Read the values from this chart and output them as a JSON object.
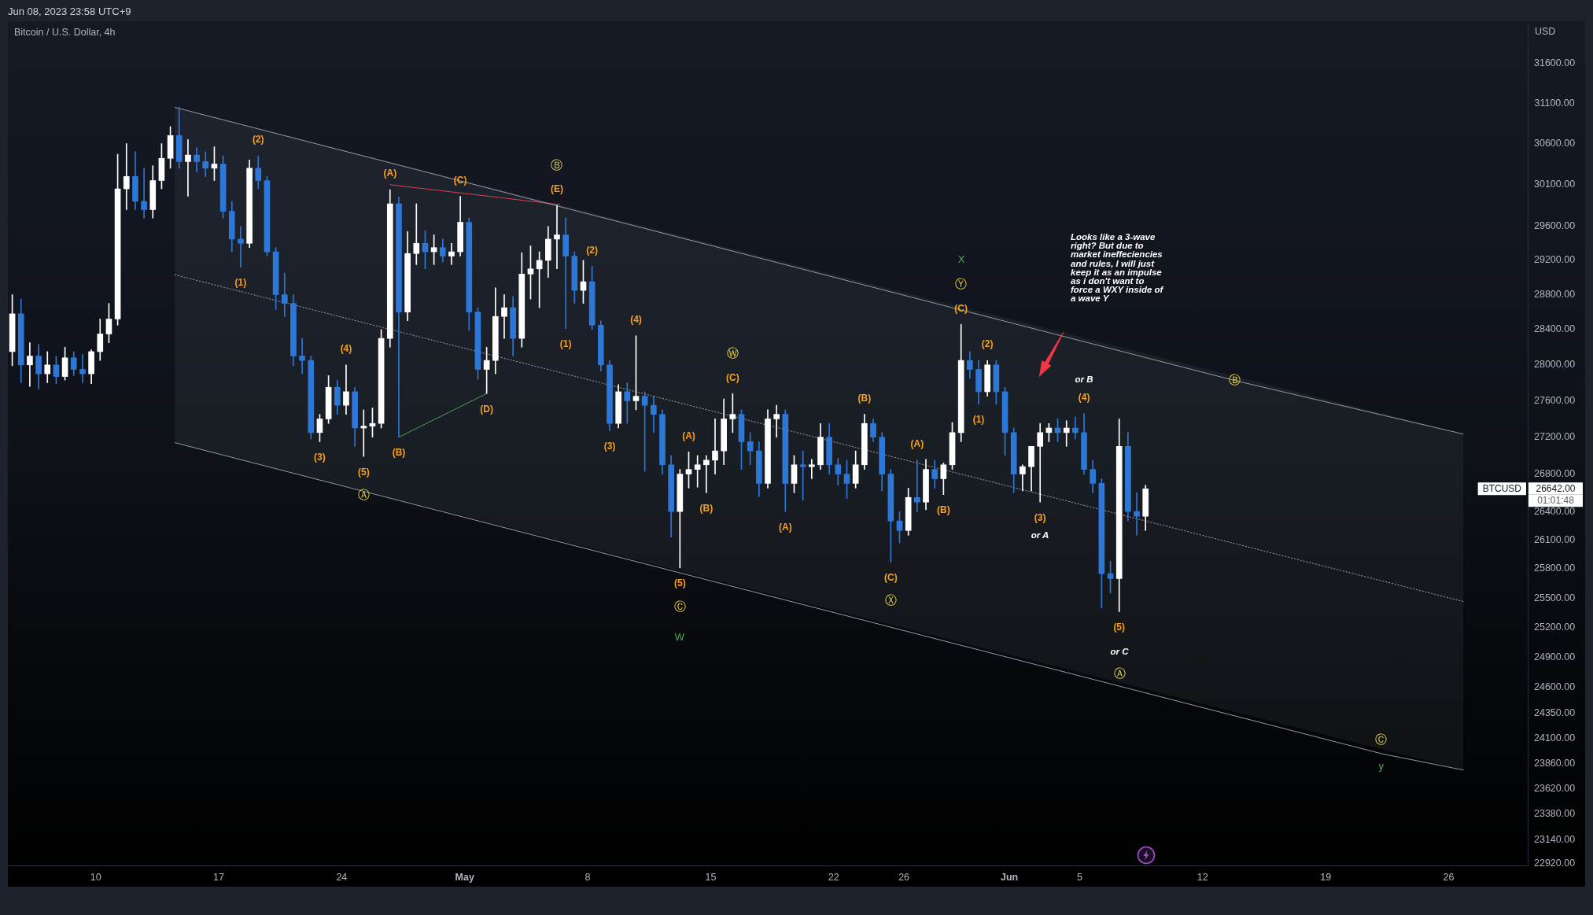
{
  "chart_data": {
    "type": "candlestick",
    "title": "Bitcoin / U.S. Dollar, 4h",
    "subtitle": "Jun 08, 2023 23:58 UTC+9",
    "ylabel": "USD",
    "x": [
      "2023-04-05T06:00",
      "2023-04-05T18:00",
      "2023-04-06T06:00",
      "2023-04-06T18:00",
      "2023-04-07T06:00",
      "2023-04-07T18:00",
      "2023-04-08T06:00",
      "2023-04-08T18:00",
      "2023-04-09T06:00",
      "2023-04-09T18:00",
      "2023-04-10T06:00",
      "2023-04-10T18:00",
      "2023-04-11T06:00",
      "2023-04-11T18:00",
      "2023-04-12T06:00",
      "2023-04-12T18:00",
      "2023-04-13T06:00",
      "2023-04-13T18:00",
      "2023-04-14T06:00",
      "2023-04-14T18:00",
      "2023-04-15T06:00",
      "2023-04-15T18:00",
      "2023-04-16T06:00",
      "2023-04-16T18:00",
      "2023-04-17T06:00",
      "2023-04-17T18:00",
      "2023-04-18T06:00",
      "2023-04-18T18:00",
      "2023-04-19T06:00",
      "2023-04-19T18:00",
      "2023-04-20T06:00",
      "2023-04-20T18:00",
      "2023-04-21T06:00",
      "2023-04-21T18:00",
      "2023-04-22T06:00",
      "2023-04-22T18:00",
      "2023-04-23T06:00",
      "2023-04-23T18:00",
      "2023-04-24T06:00",
      "2023-04-24T18:00",
      "2023-04-25T06:00",
      "2023-04-25T18:00",
      "2023-04-26T06:00",
      "2023-04-26T18:00",
      "2023-04-27T06:00",
      "2023-04-27T18:00",
      "2023-04-28T06:00",
      "2023-04-28T18:00",
      "2023-04-29T06:00",
      "2023-04-29T18:00",
      "2023-04-30T06:00",
      "2023-04-30T18:00",
      "2023-05-01T06:00",
      "2023-05-01T18:00",
      "2023-05-02T06:00",
      "2023-05-02T18:00",
      "2023-05-03T06:00",
      "2023-05-03T18:00",
      "2023-05-04T06:00",
      "2023-05-04T18:00",
      "2023-05-05T06:00",
      "2023-05-05T18:00",
      "2023-05-06T06:00",
      "2023-05-06T18:00",
      "2023-05-07T06:00",
      "2023-05-07T18:00",
      "2023-05-08T06:00",
      "2023-05-08T18:00",
      "2023-05-09T06:00",
      "2023-05-09T18:00",
      "2023-05-10T06:00",
      "2023-05-10T18:00",
      "2023-05-11T06:00",
      "2023-05-11T18:00",
      "2023-05-12T06:00",
      "2023-05-12T18:00",
      "2023-05-13T06:00",
      "2023-05-13T18:00",
      "2023-05-14T06:00",
      "2023-05-14T18:00",
      "2023-05-15T06:00",
      "2023-05-15T18:00",
      "2023-05-16T06:00",
      "2023-05-16T18:00",
      "2023-05-17T06:00",
      "2023-05-17T18:00",
      "2023-05-18T06:00",
      "2023-05-18T18:00",
      "2023-05-19T06:00",
      "2023-05-19T18:00",
      "2023-05-20T06:00",
      "2023-05-20T18:00",
      "2023-05-21T06:00",
      "2023-05-21T18:00",
      "2023-05-22T06:00",
      "2023-05-22T18:00",
      "2023-05-23T06:00",
      "2023-05-23T18:00",
      "2023-05-24T06:00",
      "2023-05-24T18:00",
      "2023-05-25T06:00",
      "2023-05-25T18:00",
      "2023-05-26T06:00",
      "2023-05-26T18:00",
      "2023-05-27T06:00",
      "2023-05-27T18:00",
      "2023-05-28T06:00",
      "2023-05-28T18:00",
      "2023-05-29T06:00",
      "2023-05-29T18:00",
      "2023-05-30T06:00",
      "2023-05-30T18:00",
      "2023-05-31T06:00",
      "2023-05-31T18:00",
      "2023-06-01T06:00",
      "2023-06-01T18:00",
      "2023-06-02T06:00",
      "2023-06-02T18:00",
      "2023-06-03T06:00",
      "2023-06-03T18:00",
      "2023-06-04T06:00",
      "2023-06-04T18:00",
      "2023-06-05T06:00",
      "2023-06-05T18:00",
      "2023-06-06T06:00",
      "2023-06-06T18:00",
      "2023-06-07T06:00",
      "2023-06-07T18:00",
      "2023-06-08T06:00",
      "2023-06-08T18:00"
    ],
    "ohlc": [
      [
        28150,
        28800,
        27990,
        28580
      ],
      [
        28580,
        28750,
        27800,
        28000
      ],
      [
        28000,
        28250,
        27760,
        28100
      ],
      [
        28100,
        28230,
        27730,
        27900
      ],
      [
        27900,
        28150,
        27800,
        28000
      ],
      [
        28000,
        28100,
        27790,
        27870
      ],
      [
        27870,
        28200,
        27830,
        28080
      ],
      [
        28080,
        28150,
        27880,
        27950
      ],
      [
        27950,
        28120,
        27800,
        27900
      ],
      [
        27900,
        28170,
        27790,
        28150
      ],
      [
        28150,
        28520,
        28050,
        28350
      ],
      [
        28350,
        28700,
        28250,
        28520
      ],
      [
        28520,
        30470,
        28450,
        30050
      ],
      [
        30050,
        30600,
        29800,
        30200
      ],
      [
        30200,
        30500,
        29800,
        29900
      ],
      [
        29900,
        30300,
        29700,
        29800
      ],
      [
        29800,
        30330,
        29700,
        30150
      ],
      [
        30150,
        30600,
        30050,
        30420
      ],
      [
        30420,
        30810,
        30300,
        30700
      ],
      [
        30700,
        31050,
        30300,
        30380
      ],
      [
        30380,
        30650,
        29960,
        30460
      ],
      [
        30460,
        30550,
        30250,
        30380
      ],
      [
        30380,
        30500,
        30200,
        30300
      ],
      [
        30300,
        30560,
        30150,
        30350
      ],
      [
        30350,
        30450,
        29700,
        29780
      ],
      [
        29780,
        29900,
        29300,
        29450
      ],
      [
        29450,
        29600,
        29120,
        29400
      ],
      [
        29400,
        30400,
        29350,
        30300
      ],
      [
        30300,
        30450,
        30050,
        30150
      ],
      [
        30150,
        30200,
        29250,
        29300
      ],
      [
        29300,
        29350,
        28630,
        28800
      ],
      [
        28800,
        29050,
        28550,
        28700
      ],
      [
        28700,
        28800,
        27990,
        28100
      ],
      [
        28100,
        28300,
        27900,
        28050
      ],
      [
        28050,
        28100,
        27180,
        27250
      ],
      [
        27250,
        27450,
        27150,
        27400
      ],
      [
        27400,
        27880,
        27350,
        27750
      ],
      [
        27750,
        27830,
        27450,
        27550
      ],
      [
        27550,
        28000,
        27450,
        27700
      ],
      [
        27700,
        27750,
        27100,
        27300
      ],
      [
        27300,
        27500,
        26990,
        27320
      ],
      [
        27320,
        27520,
        27200,
        27350
      ],
      [
        27350,
        28400,
        27300,
        28300
      ],
      [
        28300,
        30040,
        28200,
        29870
      ],
      [
        29870,
        29950,
        27200,
        28600
      ],
      [
        28600,
        29540,
        28500,
        29280
      ],
      [
        29280,
        29870,
        29150,
        29400
      ],
      [
        29400,
        29550,
        29100,
        29300
      ],
      [
        29300,
        29500,
        29150,
        29350
      ],
      [
        29350,
        29450,
        29180,
        29250
      ],
      [
        29250,
        29400,
        29150,
        29300
      ],
      [
        29300,
        29960,
        29250,
        29650
      ],
      [
        29650,
        29700,
        28390,
        28600
      ],
      [
        28600,
        28650,
        27840,
        27950
      ],
      [
        27950,
        28200,
        27680,
        28050
      ],
      [
        28050,
        28880,
        27900,
        28550
      ],
      [
        28550,
        28800,
        28300,
        28650
      ],
      [
        28650,
        28780,
        28100,
        28300
      ],
      [
        28300,
        29290,
        28200,
        29040
      ],
      [
        29040,
        29370,
        28750,
        29100
      ],
      [
        29100,
        29300,
        28650,
        29200
      ],
      [
        29200,
        29600,
        29000,
        29450
      ],
      [
        29450,
        29850,
        29100,
        29500
      ],
      [
        29500,
        29700,
        28410,
        29250
      ],
      [
        29250,
        29300,
        28700,
        28850
      ],
      [
        28850,
        29200,
        28700,
        28950
      ],
      [
        28950,
        29130,
        28400,
        28450
      ],
      [
        28450,
        28500,
        27930,
        28000
      ],
      [
        28000,
        28050,
        27270,
        27350
      ],
      [
        27350,
        27780,
        27300,
        27700
      ],
      [
        27700,
        27800,
        27350,
        27600
      ],
      [
        27600,
        28330,
        27500,
        27650
      ],
      [
        27650,
        27700,
        26830,
        27550
      ],
      [
        27550,
        27650,
        27250,
        27450
      ],
      [
        27450,
        27500,
        26800,
        26900
      ],
      [
        26900,
        27000,
        26130,
        26400
      ],
      [
        26400,
        26850,
        25810,
        26800
      ],
      [
        26800,
        27040,
        26650,
        26850
      ],
      [
        26850,
        27000,
        26660,
        26900
      ],
      [
        26900,
        27000,
        26600,
        26950
      ],
      [
        26950,
        27400,
        26800,
        27050
      ],
      [
        27050,
        27620,
        26900,
        27400
      ],
      [
        27400,
        27680,
        27250,
        27450
      ],
      [
        27450,
        27500,
        26850,
        27150
      ],
      [
        27150,
        27250,
        26900,
        27050
      ],
      [
        27050,
        27150,
        26560,
        26700
      ],
      [
        26700,
        27500,
        26650,
        27400
      ],
      [
        27400,
        27550,
        27200,
        27450
      ],
      [
        27450,
        27500,
        26400,
        26700
      ],
      [
        26700,
        27000,
        26600,
        26900
      ],
      [
        26900,
        27050,
        26520,
        26880
      ],
      [
        26880,
        26960,
        26750,
        26900
      ],
      [
        26900,
        27350,
        26850,
        27200
      ],
      [
        27200,
        27350,
        26800,
        26900
      ],
      [
        26900,
        26970,
        26680,
        26800
      ],
      [
        26800,
        26950,
        26540,
        26700
      ],
      [
        26700,
        27050,
        26650,
        26900
      ],
      [
        26900,
        27450,
        26850,
        27350
      ],
      [
        27350,
        27400,
        27150,
        27200
      ],
      [
        27200,
        27250,
        26620,
        26800
      ],
      [
        26800,
        26850,
        25870,
        26300
      ],
      [
        26300,
        26400,
        26070,
        26200
      ],
      [
        26200,
        26650,
        26150,
        26550
      ],
      [
        26550,
        26950,
        26400,
        26500
      ],
      [
        26500,
        26960,
        26420,
        26850
      ],
      [
        26850,
        26950,
        26650,
        26750
      ],
      [
        26750,
        26920,
        26580,
        26900
      ],
      [
        26900,
        27360,
        26850,
        27250
      ],
      [
        27250,
        28460,
        27150,
        28050
      ],
      [
        28050,
        28150,
        27850,
        27950
      ],
      [
        27950,
        28050,
        27560,
        27700
      ],
      [
        27700,
        28050,
        27650,
        28000
      ],
      [
        28000,
        28050,
        27560,
        27700
      ],
      [
        27700,
        27750,
        27000,
        27250
      ],
      [
        27250,
        27300,
        26600,
        26800
      ],
      [
        26800,
        26900,
        26620,
        26880
      ],
      [
        26880,
        27100,
        26620,
        27100
      ],
      [
        27100,
        27350,
        26500,
        27250
      ],
      [
        27250,
        27350,
        27150,
        27300
      ],
      [
        27300,
        27400,
        27150,
        27250
      ],
      [
        27250,
        27380,
        27100,
        27300
      ],
      [
        27300,
        27420,
        27180,
        27250
      ],
      [
        27250,
        27460,
        26800,
        26850
      ],
      [
        26850,
        26950,
        26600,
        26700
      ],
      [
        26700,
        26750,
        25400,
        25750
      ],
      [
        25750,
        25880,
        25550,
        25700
      ],
      [
        25700,
        27400,
        25360,
        27100
      ],
      [
        27100,
        27250,
        26300,
        26400
      ],
      [
        26400,
        26600,
        26150,
        26350
      ],
      [
        26350,
        26680,
        26200,
        26642
      ]
    ],
    "colors": [
      "#ffffff",
      "#2d78d7",
      "#ffffff",
      "#2d78d7",
      "#ffffff",
      "#2d78d7",
      "#ffffff",
      "#2d78d7",
      "#2d78d7",
      "#ffffff",
      "#ffffff",
      "#ffffff",
      "#ffffff",
      "#ffffff",
      "#2d78d7",
      "#2d78d7",
      "#ffffff",
      "#ffffff",
      "#ffffff",
      "#2d78d7",
      "#ffffff",
      "#2d78d7",
      "#2d78d7",
      "#ffffff",
      "#2d78d7",
      "#2d78d7",
      "#2d78d7",
      "#ffffff",
      "#2d78d7",
      "#2d78d7",
      "#2d78d7",
      "#2d78d7",
      "#2d78d7",
      "#2d78d7",
      "#2d78d7",
      "#ffffff",
      "#ffffff",
      "#2d78d7",
      "#ffffff",
      "#2d78d7",
      "#ffffff",
      "#ffffff",
      "#ffffff",
      "#ffffff",
      "#2d78d7",
      "#ffffff",
      "#ffffff",
      "#2d78d7",
      "#ffffff",
      "#2d78d7",
      "#ffffff",
      "#ffffff",
      "#2d78d7",
      "#2d78d7",
      "#ffffff",
      "#ffffff",
      "#ffffff",
      "#2d78d7",
      "#ffffff",
      "#ffffff",
      "#ffffff",
      "#ffffff",
      "#ffffff",
      "#2d78d7",
      "#2d78d7",
      "#ffffff",
      "#2d78d7",
      "#2d78d7",
      "#2d78d7",
      "#ffffff",
      "#2d78d7",
      "#ffffff",
      "#2d78d7",
      "#2d78d7",
      "#2d78d7",
      "#2d78d7",
      "#ffffff",
      "#ffffff",
      "#ffffff",
      "#ffffff",
      "#ffffff",
      "#ffffff",
      "#ffffff",
      "#2d78d7",
      "#2d78d7",
      "#2d78d7",
      "#ffffff",
      "#ffffff",
      "#2d78d7",
      "#ffffff",
      "#2d78d7",
      "#ffffff",
      "#ffffff",
      "#2d78d7",
      "#2d78d7",
      "#2d78d7",
      "#ffffff",
      "#ffffff",
      "#2d78d7",
      "#2d78d7",
      "#2d78d7",
      "#2d78d7",
      "#ffffff",
      "#2d78d7",
      "#ffffff",
      "#2d78d7",
      "#ffffff",
      "#ffffff",
      "#ffffff",
      "#2d78d7",
      "#2d78d7",
      "#ffffff",
      "#2d78d7",
      "#2d78d7",
      "#2d78d7",
      "#ffffff",
      "#ffffff",
      "#ffffff",
      "#ffffff",
      "#2d78d7",
      "#ffffff",
      "#2d78d7",
      "#2d78d7",
      "#2d78d7",
      "#2d78d7",
      "#2d78d7",
      "#ffffff",
      "#2d78d7",
      "#2d78d7",
      "#ffffff"
    ],
    "series": [
      {
        "type": "line",
        "color": "#9598a1",
        "x": [
          "2023-04-14T12:00",
          "2023-06-13T20:00",
          "2023-06-26T20:00"
        ],
        "values": [
          31049,
          27825,
          27234
        ]
      },
      {
        "type": "line",
        "color": "#9598a1",
        "line_style": "dotted",
        "x": [
          "2023-04-14T12:00",
          "2023-06-26T20:00"
        ],
        "values": [
          29031,
          25464
        ],
        "lower": [
          27140,
          23799
        ],
        "upper": [
          31049,
          27234
        ]
      },
      {
        "type": "line",
        "color": "#9598a1",
        "x": [
          "2023-04-14T12:00",
          "2023-06-22T04:00",
          "2023-06-26T20:00"
        ],
        "values": [
          27140,
          23956,
          23799
        ]
      },
      {
        "type": "line",
        "color": "#d9434f",
        "x": [
          "2023-04-26T18:00",
          "2023-05-06T10:00"
        ],
        "values": [
          30100,
          29860
        ]
      },
      {
        "type": "line",
        "color": "#4f9f55",
        "x": [
          "2023-04-27T06:00",
          "2023-05-02T06:00"
        ],
        "values": [
          27200,
          27680
        ]
      }
    ],
    "xlim": [
      "2023-04-05T00:00",
      "2023-06-30T12:00"
    ],
    "xticks": [
      {
        "value": "2023-04-10",
        "label": "10"
      },
      {
        "value": "2023-04-17",
        "label": "17"
      },
      {
        "value": "2023-04-24",
        "label": "24"
      },
      {
        "value": "2023-05-01",
        "label": "May"
      },
      {
        "value": "2023-05-08",
        "label": "8"
      },
      {
        "value": "2023-05-15",
        "label": "15"
      },
      {
        "value": "2023-05-22",
        "label": "22"
      },
      {
        "value": "2023-05-26",
        "label": "26"
      },
      {
        "value": "2023-06-01",
        "label": "Jun"
      },
      {
        "value": "2023-06-05",
        "label": "5"
      },
      {
        "value": "2023-06-12",
        "label": "12"
      },
      {
        "value": "2023-06-19",
        "label": "19"
      },
      {
        "value": "2023-06-26",
        "label": "26"
      }
    ],
    "ylim": [
      22905,
      32110
    ],
    "log": true,
    "yticks": [
      {
        "value": 31600,
        "label": "31600.00"
      },
      {
        "value": 31100,
        "label": "31100.00"
      },
      {
        "value": 30600,
        "label": "30600.00"
      },
      {
        "value": 30100,
        "label": "30100.00"
      },
      {
        "value": 29600,
        "label": "29600.00"
      },
      {
        "value": 29200,
        "label": "29200.00"
      },
      {
        "value": 28800,
        "label": "28800.00"
      },
      {
        "value": 28400,
        "label": "28400.00"
      },
      {
        "value": 28000,
        "label": "28000.00"
      },
      {
        "value": 27600,
        "label": "27600.00"
      },
      {
        "value": 27200,
        "label": "27200.00"
      },
      {
        "value": 26800,
        "label": "26800.00"
      },
      {
        "value": 26400,
        "label": "26400.00"
      },
      {
        "value": 26100,
        "label": "26100.00"
      },
      {
        "value": 25800,
        "label": "25800.00"
      },
      {
        "value": 25500,
        "label": "25500.00"
      },
      {
        "value": 25200,
        "label": "25200.00"
      },
      {
        "value": 24900,
        "label": "24900.00"
      },
      {
        "value": 24600,
        "label": "24600.00"
      },
      {
        "value": 24350,
        "label": "24350.00"
      },
      {
        "value": 24100,
        "label": "24100.00"
      },
      {
        "value": 23860,
        "label": "23860.00"
      },
      {
        "value": 23620,
        "label": "23620.00"
      },
      {
        "value": 23380,
        "label": "23380.00"
      },
      {
        "value": 23140,
        "label": "23140.00"
      },
      {
        "value": 22920,
        "label": "22920.00"
      }
    ],
    "annotations": [
      {
        "text": "(2)",
        "x": "2023-04-19T06:00",
        "y": 30450
      },
      {
        "text": "(1)",
        "x": "2023-04-18T06:00",
        "y": 29120
      },
      {
        "text": "(4)",
        "x": "2023-04-24T06:00",
        "y": 28000
      },
      {
        "text": "(3)",
        "x": "2023-04-22T18:00",
        "y": 27150
      },
      {
        "text": "(5)",
        "x": "2023-04-25T06:00",
        "y": 26990
      },
      {
        "text": "(A)",
        "x": "2023-04-26T18:00",
        "y": 30040
      },
      {
        "text": "(C)",
        "x": "2023-04-30T18:00",
        "y": 29960
      },
      {
        "text": "(B)",
        "x": "2023-04-27T06:00",
        "y": 27200
      },
      {
        "text": "(D)",
        "x": "2023-05-02T06:00",
        "y": 27680
      },
      {
        "text": "(E)",
        "x": "2023-05-06T06:00",
        "y": 29850
      },
      {
        "text": "(2)",
        "x": "2023-05-08T06:00",
        "y": 29130
      },
      {
        "text": "(1)",
        "x": "2023-05-06T18:00",
        "y": 28410
      },
      {
        "text": "(4)",
        "x": "2023-05-10T18:00",
        "y": 28330
      },
      {
        "text": "(3)",
        "x": "2023-05-09T06:00",
        "y": 27270
      },
      {
        "text": "(C)",
        "x": "2023-05-16T06:00",
        "y": 27680
      },
      {
        "text": "(A)",
        "x": "2023-05-13T18:00",
        "y": 27040
      },
      {
        "text": "(B)",
        "x": "2023-05-14T18:00",
        "y": 26600
      },
      {
        "text": "(5)",
        "x": "2023-05-13T06:00",
        "y": 25810
      },
      {
        "text": "(A)",
        "x": "2023-05-19T06:00",
        "y": 26400
      },
      {
        "text": "(B)",
        "x": "2023-05-23T18:00",
        "y": 27450
      },
      {
        "text": "(C)",
        "x": "2023-05-25T06:00",
        "y": 25870
      },
      {
        "text": "(A)",
        "x": "2023-05-26T18:00",
        "y": 26950
      },
      {
        "text": "(B)",
        "x": "2023-05-28T06:00",
        "y": 26580
      },
      {
        "text": "(C)",
        "x": "2023-05-29T06:00",
        "y": 28460
      },
      {
        "text": "(2)",
        "x": "2023-05-30T18:00",
        "y": 28050
      },
      {
        "text": "(1)",
        "x": "2023-05-30T06:00",
        "y": 27560
      },
      {
        "text": "(3)",
        "x": "2023-06-02T18:00",
        "y": 26500
      },
      {
        "text": "(4)",
        "x": "2023-06-05T06:00",
        "y": 27460
      },
      {
        "text": "(5)",
        "x": "2023-06-07T06:00",
        "y": 25360
      },
      {
        "text": "Ⓐ",
        "x": "2023-04-25T06:00",
        "y": 26990
      },
      {
        "text": "Ⓑ",
        "x": "2023-05-06T06:00",
        "y": 29850
      },
      {
        "text": "Ⓦ",
        "x": "2023-05-16T06:00",
        "y": 27680
      },
      {
        "text": "Ⓒ",
        "x": "2023-05-13T06:00",
        "y": 25810
      },
      {
        "text": "Ⓧ",
        "x": "2023-05-25T06:00",
        "y": 25870
      },
      {
        "text": "Ⓨ",
        "x": "2023-05-29T06:00",
        "y": 28460
      },
      {
        "text": "Ⓑ",
        "x": "2023-06-13T20:00",
        "y": 27825
      },
      {
        "text": "Ⓒ",
        "x": "2023-06-22T04:00",
        "y": 23956
      },
      {
        "text": "y",
        "x": "2023-06-22T04:00",
        "y": 23956
      },
      "or A",
      "or B",
      "or C",
      "Ⓐ",
      "W",
      "X",
      "Looks like a 3-wave right? But due to market ineffeciencies and rules, I will just keep it as an impulse as i don't want to force a WXY inside of a wave Y",
      "BTCUSD",
      "26642.00",
      "01:01:48"
    ]
  }
}
